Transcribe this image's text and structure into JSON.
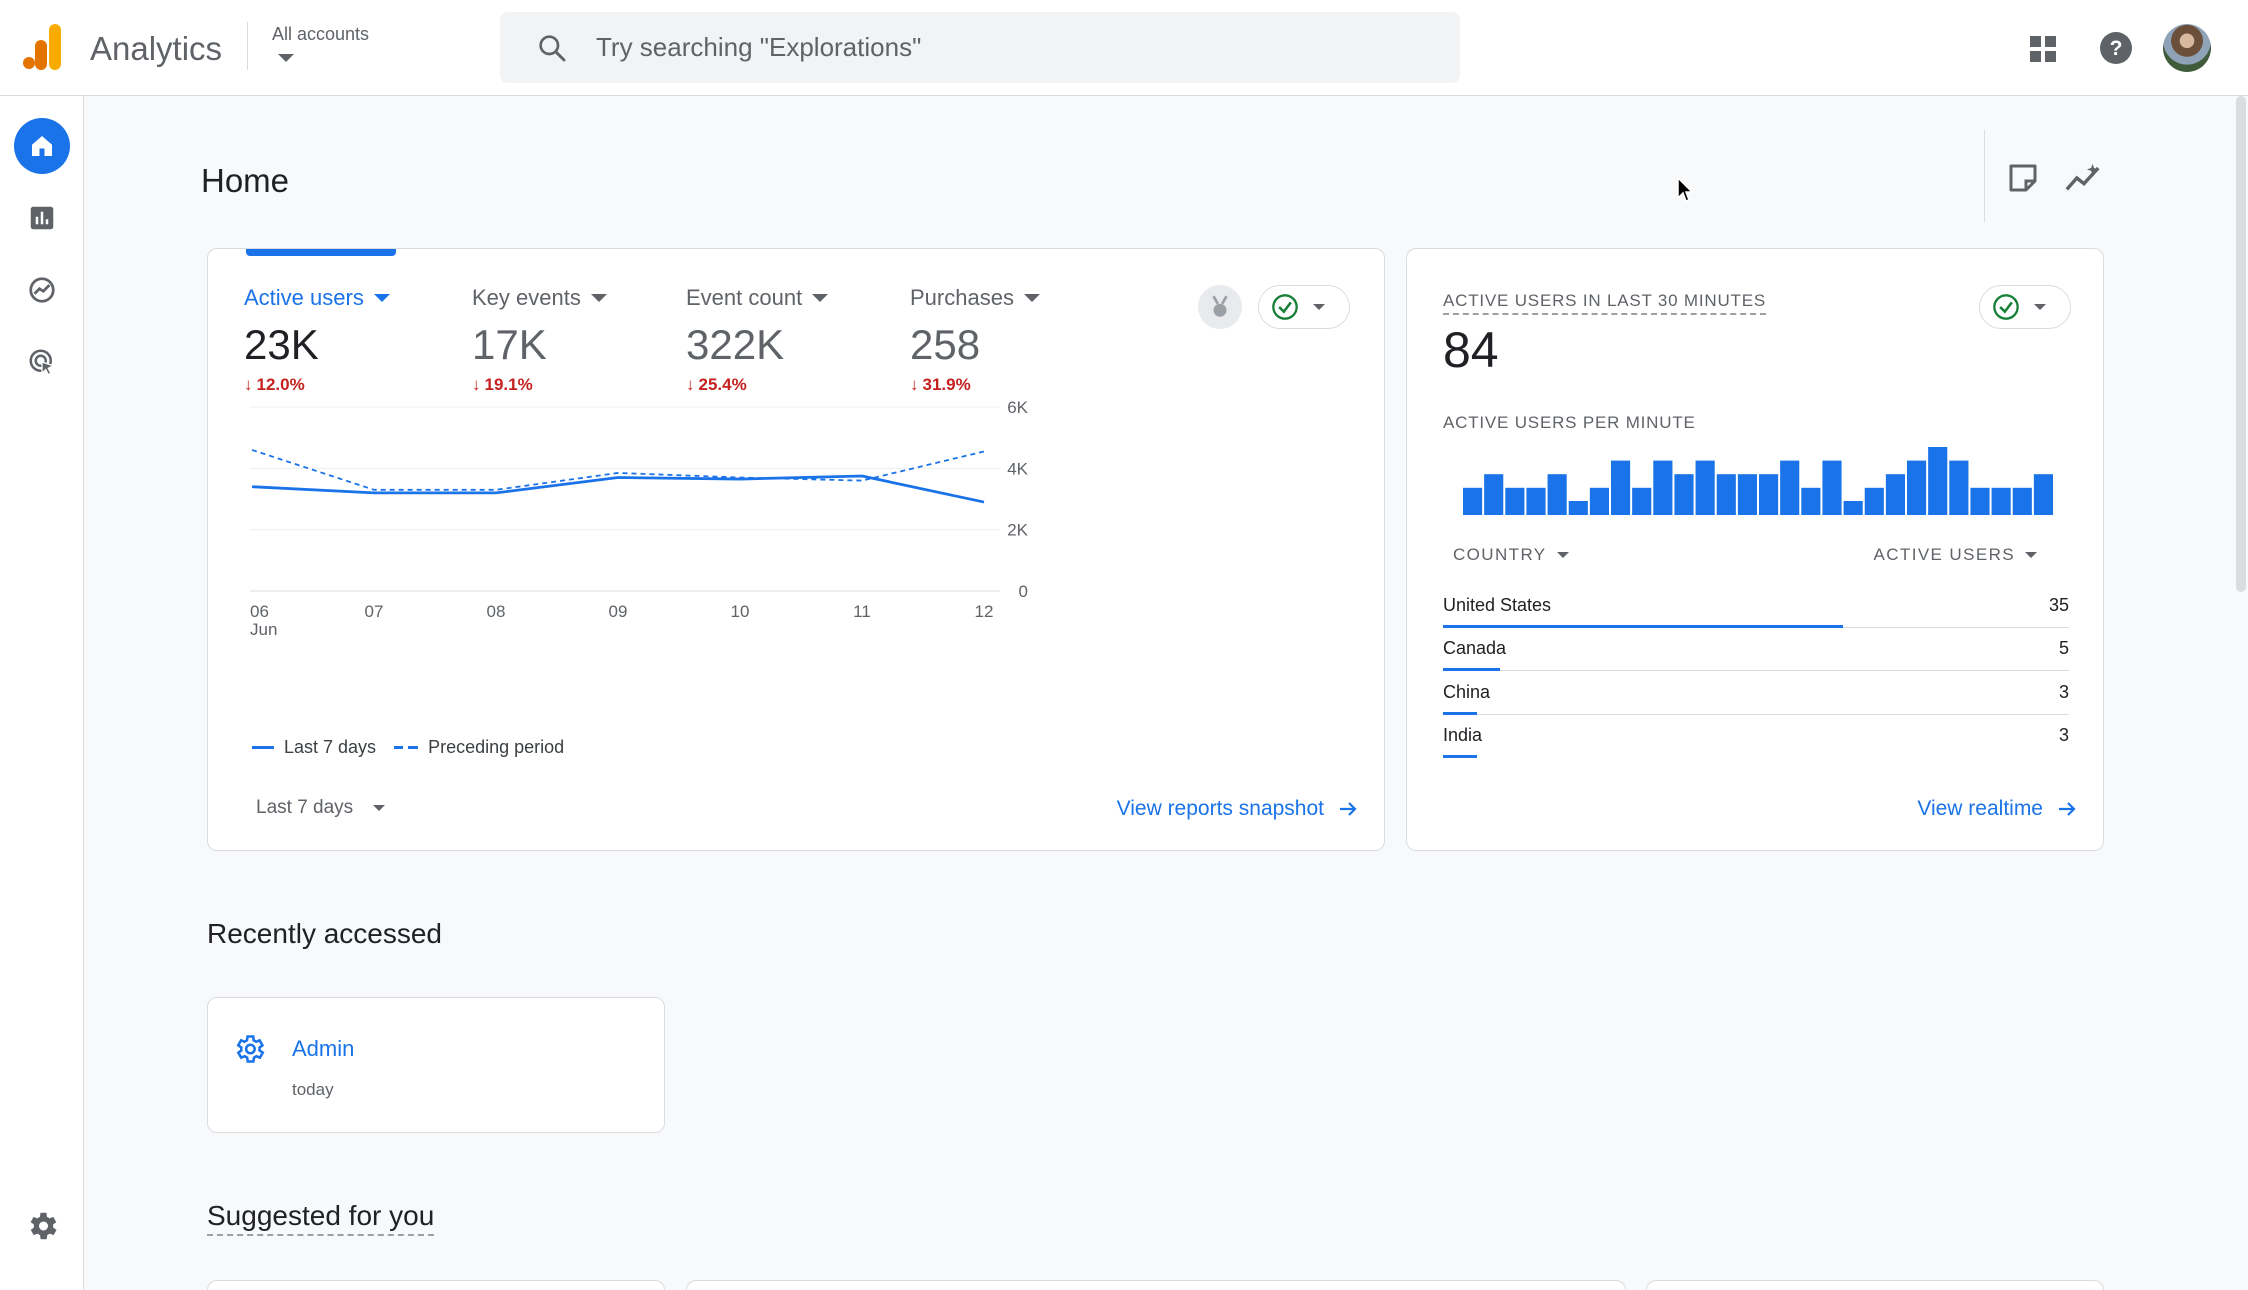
{
  "app": {
    "title": "Analytics",
    "account_label": "All accounts"
  },
  "search": {
    "placeholder": "Try searching \"Explorations\""
  },
  "nav": {
    "items": [
      "home",
      "reports",
      "explore",
      "advertising"
    ]
  },
  "page": {
    "title": "Home"
  },
  "metrics": [
    {
      "label": "Active users",
      "value": "23K",
      "change": "12.0%",
      "direction": "down",
      "selected": true
    },
    {
      "label": "Key events",
      "value": "17K",
      "change": "19.1%",
      "direction": "down"
    },
    {
      "label": "Event count",
      "value": "322K",
      "change": "25.4%",
      "direction": "down"
    },
    {
      "label": "Purchases",
      "value": "258",
      "change": "31.9%",
      "direction": "down"
    }
  ],
  "chart_data": {
    "type": "line",
    "x": [
      "06 Jun",
      "07",
      "08",
      "09",
      "10",
      "11",
      "12"
    ],
    "x_tick_labels": [
      "06",
      "07",
      "08",
      "09",
      "10",
      "11",
      "12"
    ],
    "x_sub_label": "Jun",
    "series": [
      {
        "name": "Last 7 days",
        "style": "solid",
        "values": [
          3400,
          3200,
          3200,
          3700,
          3650,
          3750,
          2900
        ]
      },
      {
        "name": "Preceding period",
        "style": "dashed",
        "values": [
          4600,
          3300,
          3300,
          3850,
          3700,
          3600,
          4550
        ]
      }
    ],
    "y_ticks": [
      "0",
      "2K",
      "4K",
      "6K"
    ],
    "ylim": [
      0,
      6000
    ],
    "grid": true,
    "legend": "bottom-left",
    "color": "#1a73e8"
  },
  "main_card": {
    "date_range": "Last 7 days",
    "view_link": "View reports snapshot"
  },
  "realtime": {
    "title": "ACTIVE USERS IN LAST 30 MINUTES",
    "value": "84",
    "per_minute_label": "ACTIVE USERS PER MINUTE",
    "per_minute": [
      2,
      3,
      2,
      2,
      3,
      1,
      2,
      4,
      2,
      4,
      3,
      4,
      3,
      3,
      3,
      4,
      2,
      4,
      1,
      2,
      3,
      4,
      5,
      4,
      2,
      2,
      2,
      3
    ],
    "country_header": "COUNTRY",
    "users_header": "ACTIVE USERS",
    "countries": [
      {
        "name": "United States",
        "value": "35",
        "count": 35
      },
      {
        "name": "Canada",
        "value": "5",
        "count": 5
      },
      {
        "name": "China",
        "value": "3",
        "count": 3
      },
      {
        "name": "India",
        "value": "3",
        "count": 3
      }
    ],
    "view_link": "View realtime"
  },
  "recent": {
    "title": "Recently accessed",
    "items": [
      {
        "name": "Admin",
        "time": "today"
      }
    ]
  },
  "suggested": {
    "title": "Suggested for you"
  },
  "colors": {
    "accent": "#1a73e8",
    "negative": "#c5221f",
    "positive": "#188038",
    "logo_orange": "#f9ab00",
    "logo_dark_orange": "#e37400"
  }
}
